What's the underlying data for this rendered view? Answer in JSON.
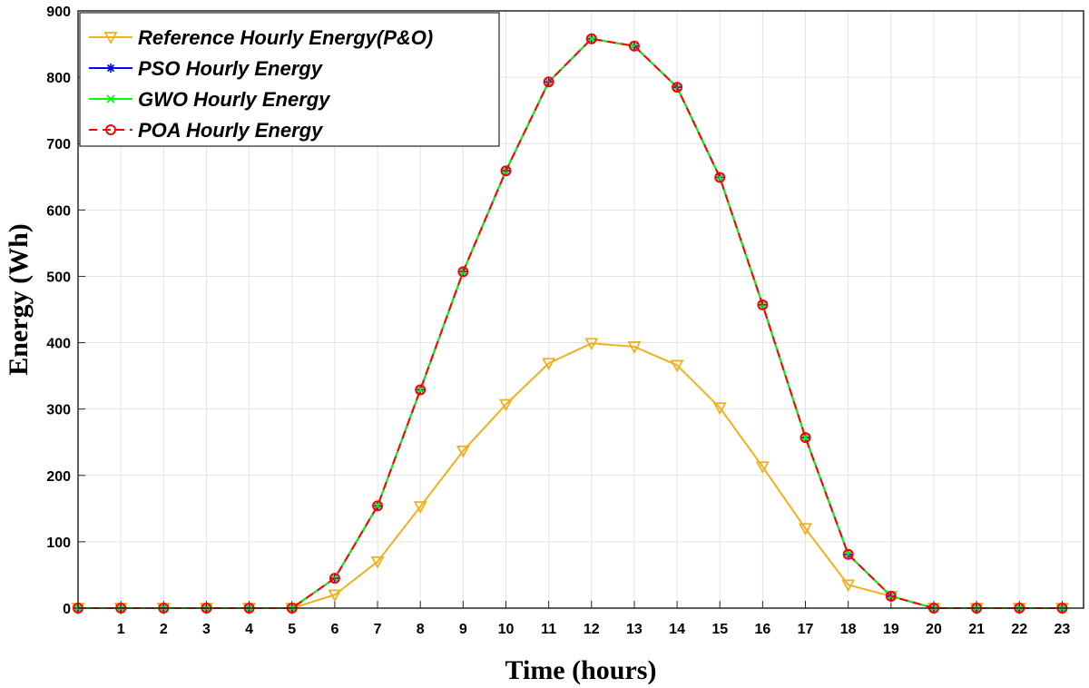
{
  "chart_data": {
    "type": "line",
    "title": "",
    "xlabel": "Time (hours)",
    "ylabel": "Energy (Wh)",
    "xlim": [
      0,
      23.5
    ],
    "ylim": [
      0,
      900
    ],
    "x_ticks": [
      1,
      2,
      3,
      4,
      5,
      6,
      7,
      8,
      9,
      10,
      11,
      12,
      13,
      14,
      15,
      16,
      17,
      18,
      19,
      20,
      21,
      22,
      23
    ],
    "y_ticks": [
      0,
      100,
      200,
      300,
      400,
      500,
      600,
      700,
      800,
      900
    ],
    "grid": true,
    "legend_position": "top-left",
    "x": [
      0,
      1,
      2,
      3,
      4,
      5,
      6,
      7,
      8,
      9,
      10,
      11,
      12,
      13,
      14,
      15,
      16,
      17,
      18,
      19,
      20,
      21,
      22,
      23
    ],
    "series": [
      {
        "name": "Reference Hourly Energy(P&O)",
        "color": "#EDB120",
        "marker": "triangle-down",
        "line_style": "solid",
        "values": [
          0,
          0,
          0,
          0,
          0,
          0,
          20,
          70,
          153,
          237,
          307,
          369,
          399,
          394,
          366,
          302,
          213,
          120,
          35,
          18,
          0,
          0,
          0,
          0
        ]
      },
      {
        "name": "PSO Hourly Energy",
        "color": "#0000FF",
        "marker": "asterisk",
        "line_style": "solid",
        "values": [
          0,
          0,
          0,
          0,
          0,
          0,
          45,
          154,
          329,
          507,
          659,
          793,
          858,
          847,
          785,
          649,
          457,
          257,
          81,
          18,
          0,
          0,
          0,
          0
        ]
      },
      {
        "name": "GWO Hourly Energy",
        "color": "#00FF00",
        "marker": "x",
        "line_style": "solid",
        "values": [
          0,
          0,
          0,
          0,
          0,
          0,
          45,
          154,
          329,
          507,
          659,
          793,
          858,
          847,
          785,
          649,
          457,
          257,
          81,
          18,
          0,
          0,
          0,
          0
        ]
      },
      {
        "name": "POA Hourly Energy",
        "color": "#FF0000",
        "marker": "circle",
        "line_style": "dashed",
        "values": [
          0,
          0,
          0,
          0,
          0,
          0,
          45,
          154,
          329,
          507,
          659,
          793,
          858,
          847,
          785,
          649,
          457,
          257,
          81,
          18,
          0,
          0,
          0,
          0
        ]
      }
    ]
  }
}
